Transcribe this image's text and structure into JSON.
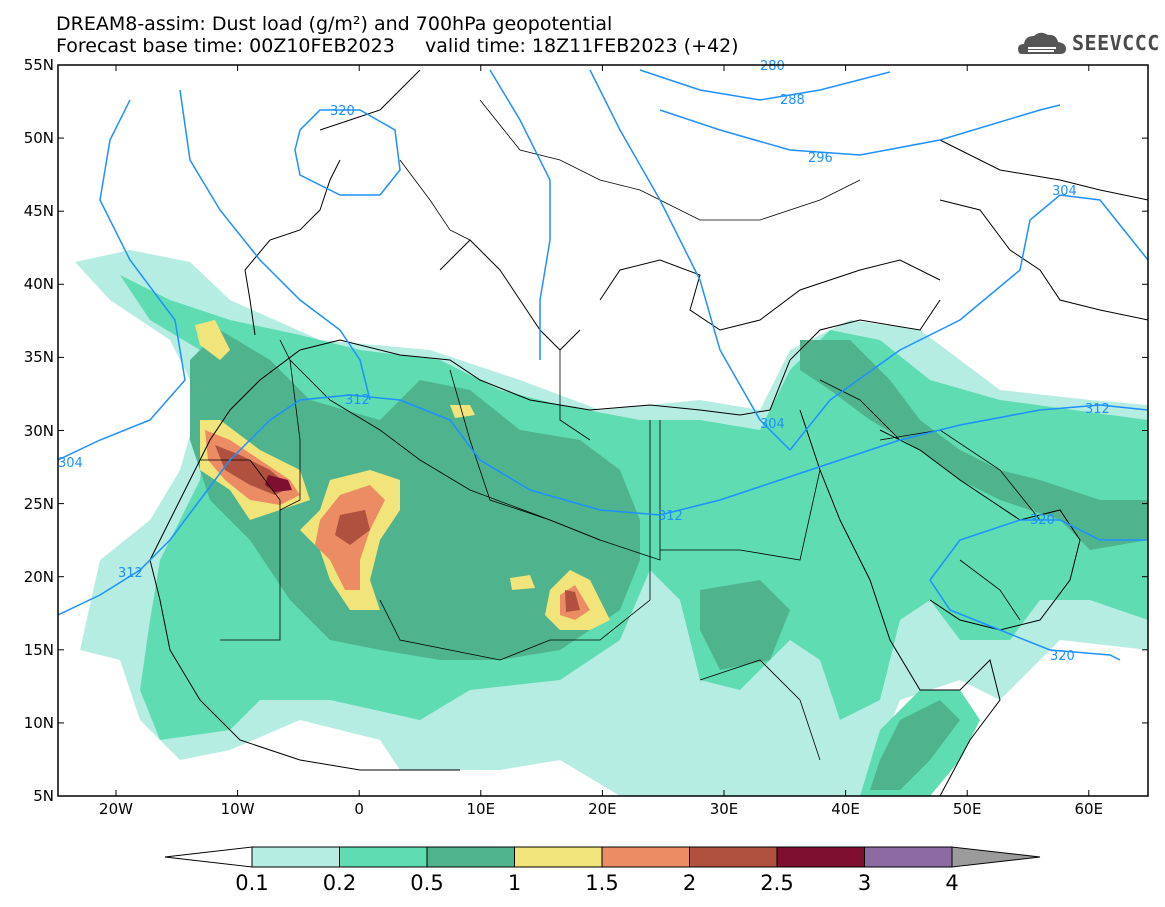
{
  "title_line1": "DREAM8-assim: Dust load (g/m²) and 700hPa geopotential",
  "title_line2": "Forecast base time: 00Z10FEB2023     valid time: 18Z11FEB2023 (+42)",
  "logo_text": "SEEVCCC",
  "lat_labels": [
    "55N",
    "50N",
    "45N",
    "40N",
    "35N",
    "30N",
    "25N",
    "20N",
    "15N",
    "10N",
    "5N"
  ],
  "lon_labels": [
    "20W",
    "10W",
    "0",
    "10E",
    "20E",
    "30E",
    "40E",
    "50E",
    "60E"
  ],
  "contour_labels": [
    "280",
    "288",
    "296",
    "304",
    "312",
    "320"
  ],
  "contour_label_extra": [
    "304",
    "312",
    "312",
    "320",
    "312",
    "320",
    "304"
  ],
  "colorbar": {
    "labels": [
      "0.1",
      "0.2",
      "0.5",
      "1",
      "1.5",
      "2",
      "2.5",
      "3",
      "4"
    ],
    "colors": [
      "#ffffff",
      "#b6ede3",
      "#5fdcb2",
      "#4fb48e",
      "#f1e47a",
      "#eb8c64",
      "#b0503e",
      "#7e0f2e",
      "#8c6ba3",
      "#9b9b9b"
    ]
  },
  "colors": {
    "contour": "#1e90ff",
    "c1": "#b6ede3",
    "c2": "#5fdcb2",
    "c3": "#4fb48e",
    "c4": "#f1e47a",
    "c5": "#eb8c64",
    "c6": "#b0503e",
    "c7": "#7e0f2e"
  }
}
